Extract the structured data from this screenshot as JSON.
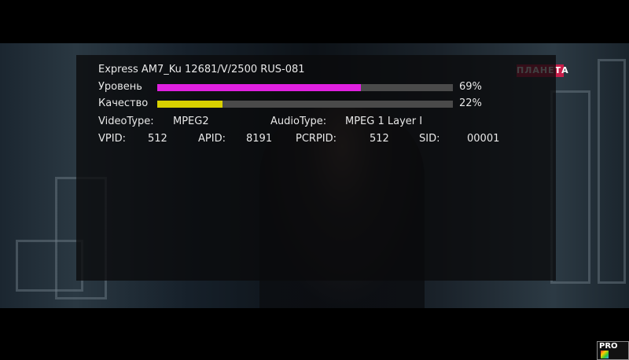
{
  "channel_logo": "ПЛАНЕТА",
  "watermark": "PRO",
  "info": {
    "title": "Express AM7_Ku 12681/V/2500 RUS-081",
    "level": {
      "label": "Уровень",
      "value": "69%",
      "percent": 69,
      "color": "#e020e0"
    },
    "quality": {
      "label": "Качество",
      "value": "22%",
      "percent": 22,
      "color": "#d8d000"
    },
    "video_type_label": "VideoType:",
    "video_type": "MPEG2",
    "audio_type_label": "AudioType:",
    "audio_type": "MPEG 1 Layer I",
    "vpid_label": "VPID:",
    "vpid": "512",
    "apid_label": "APID:",
    "apid": "8191",
    "pcrpid_label": "PCRPID:",
    "pcrpid": "512",
    "sid_label": "SID:",
    "sid": "00001"
  }
}
